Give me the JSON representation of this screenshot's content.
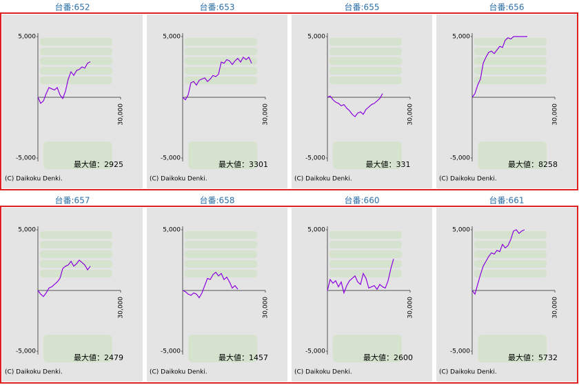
{
  "chart_data": [
    {
      "type": "line",
      "title": "台番:652",
      "max_label": "最大値：2925",
      "copyright": "(C) Daikoku Denki.",
      "color": "#8a00e0",
      "x": [
        0,
        1000,
        2000,
        3000,
        4000,
        5000,
        6000,
        7000,
        8000,
        9000,
        10000,
        11000,
        12000,
        13000,
        14000,
        15000,
        16000,
        17000,
        18000,
        19000
      ],
      "values": [
        0,
        -500,
        -300,
        300,
        800,
        700,
        600,
        800,
        200,
        -100,
        500,
        1500,
        2100,
        1800,
        2200,
        2300,
        2500,
        2400,
        2800,
        2925
      ],
      "xlim": [
        0,
        30000
      ],
      "ylim": [
        -5000,
        5000
      ],
      "xticks": [
        {
          "value": 30000,
          "label": "30,000"
        }
      ],
      "yticks": [
        {
          "value": 5000,
          "label": "5,000"
        },
        {
          "value": -5000,
          "label": "-5,000"
        }
      ]
    },
    {
      "type": "line",
      "title": "台番:653",
      "max_label": "最大値：3301",
      "copyright": "(C) Daikoku Denki.",
      "color": "#8a00e0",
      "x": [
        0,
        1000,
        2000,
        3000,
        4000,
        5000,
        6000,
        7000,
        8000,
        9000,
        10000,
        11000,
        12000,
        13000,
        14000,
        15000,
        16000,
        17000,
        18000,
        19000,
        20000,
        21000,
        22000,
        23000,
        24000,
        25000
      ],
      "values": [
        0,
        -200,
        200,
        1200,
        1300,
        1000,
        1400,
        1500,
        1600,
        1300,
        1500,
        1800,
        1700,
        1900,
        2900,
        2800,
        3100,
        3000,
        2700,
        3000,
        3200,
        2900,
        3300,
        3100,
        3300,
        2800
      ],
      "xlim": [
        0,
        30000
      ],
      "ylim": [
        -5000,
        5000
      ],
      "xticks": [
        {
          "value": 30000,
          "label": "30,000"
        }
      ],
      "yticks": [
        {
          "value": 5000,
          "label": "5,000"
        },
        {
          "value": -5000,
          "label": "-5,000"
        }
      ]
    },
    {
      "type": "line",
      "title": "台番:655",
      "max_label": "最大値：331",
      "copyright": "(C) Daikoku Denki.",
      "color": "#8a00e0",
      "x": [
        0,
        1000,
        2000,
        3000,
        4000,
        5000,
        6000,
        7000,
        8000,
        9000,
        10000,
        11000,
        12000,
        13000,
        14000,
        15000,
        16000,
        17000,
        18000,
        19000,
        20000
      ],
      "values": [
        0,
        100,
        -200,
        -400,
        -500,
        -700,
        -600,
        -900,
        -1100,
        -1400,
        -1600,
        -1300,
        -1200,
        -1400,
        -1000,
        -800,
        -600,
        -500,
        -300,
        -100,
        300
      ],
      "xlim": [
        0,
        30000
      ],
      "ylim": [
        -5000,
        5000
      ],
      "xticks": [
        {
          "value": 30000,
          "label": "30,000"
        }
      ],
      "yticks": [
        {
          "value": 5000,
          "label": "5,000"
        },
        {
          "value": -5000,
          "label": "-5,000"
        }
      ]
    },
    {
      "type": "line",
      "title": "台番:656",
      "max_label": "最大値：8258",
      "copyright": "(C) Daikoku Denki.",
      "color": "#8a00e0",
      "x": [
        0,
        1000,
        2000,
        3000,
        4000,
        5000,
        6000,
        7000,
        8000,
        9000,
        10000,
        11000,
        12000,
        13000,
        14000,
        15000,
        16000,
        17000,
        18000,
        19000,
        20000
      ],
      "values": [
        0,
        300,
        1000,
        1500,
        2800,
        3300,
        3700,
        3800,
        3600,
        3900,
        4200,
        4100,
        4700,
        4900,
        4800,
        5000,
        5000,
        5000,
        5000,
        5000,
        5000
      ],
      "xlim": [
        0,
        30000
      ],
      "ylim": [
        -5000,
        5000
      ],
      "xticks": [
        {
          "value": 30000,
          "label": "30,000"
        }
      ],
      "yticks": [
        {
          "value": 5000,
          "label": "5,000"
        },
        {
          "value": -5000,
          "label": "-5,000"
        }
      ]
    },
    {
      "type": "line",
      "title": "台番:657",
      "max_label": "最大値：2479",
      "copyright": "(C) Daikoku Denki.",
      "color": "#8a00e0",
      "x": [
        0,
        1000,
        2000,
        3000,
        4000,
        5000,
        6000,
        7000,
        8000,
        9000,
        10000,
        11000,
        12000,
        13000,
        14000,
        15000,
        16000,
        17000,
        18000,
        19000
      ],
      "values": [
        0,
        -300,
        -500,
        -200,
        200,
        300,
        500,
        700,
        1000,
        1800,
        2000,
        2100,
        2400,
        2000,
        2200,
        2500,
        2300,
        2100,
        1700,
        2000
      ],
      "xlim": [
        0,
        30000
      ],
      "ylim": [
        -5000,
        5000
      ],
      "xticks": [
        {
          "value": 30000,
          "label": "30,000"
        }
      ],
      "yticks": [
        {
          "value": 5000,
          "label": "5,000"
        },
        {
          "value": -5000,
          "label": "-5,000"
        }
      ]
    },
    {
      "type": "line",
      "title": "台番:658",
      "max_label": "最大値：1457",
      "copyright": "(C) Daikoku Denki.",
      "color": "#8a00e0",
      "x": [
        0,
        1000,
        2000,
        3000,
        4000,
        5000,
        6000,
        7000,
        8000,
        9000,
        10000,
        11000,
        12000,
        13000,
        14000,
        15000,
        16000,
        17000,
        18000,
        19000,
        20000
      ],
      "values": [
        0,
        -100,
        -300,
        -400,
        -200,
        -300,
        -600,
        -200,
        400,
        1000,
        900,
        1300,
        1500,
        1200,
        1400,
        900,
        1100,
        700,
        200,
        400,
        100
      ],
      "xlim": [
        0,
        30000
      ],
      "ylim": [
        -5000,
        5000
      ],
      "xticks": [
        {
          "value": 30000,
          "label": "30,000"
        }
      ],
      "yticks": [
        {
          "value": 5000,
          "label": "5,000"
        },
        {
          "value": -5000,
          "label": "-5,000"
        }
      ]
    },
    {
      "type": "line",
      "title": "台番:660",
      "max_label": "最大値：2600",
      "copyright": "(C) Daikoku Denki.",
      "color": "#8a00e0",
      "x": [
        0,
        1000,
        2000,
        3000,
        4000,
        5000,
        6000,
        7000,
        8000,
        9000,
        10000,
        11000,
        12000,
        13000,
        14000,
        15000,
        16000,
        17000,
        18000,
        19000,
        20000,
        21000,
        22000,
        23000,
        24000
      ],
      "values": [
        0,
        900,
        600,
        800,
        300,
        700,
        -200,
        400,
        800,
        1000,
        1200,
        700,
        500,
        1400,
        1000,
        200,
        300,
        400,
        100,
        500,
        300,
        200,
        800,
        1800,
        2600
      ],
      "xlim": [
        0,
        30000
      ],
      "ylim": [
        -5000,
        5000
      ],
      "xticks": [
        {
          "value": 30000,
          "label": "30,000"
        }
      ],
      "yticks": [
        {
          "value": 5000,
          "label": "5,000"
        },
        {
          "value": -5000,
          "label": "-5,000"
        }
      ]
    },
    {
      "type": "line",
      "title": "台番:661",
      "max_label": "最大値：5732",
      "copyright": "(C) Daikoku Denki.",
      "color": "#8a00e0",
      "x": [
        0,
        1000,
        2000,
        3000,
        4000,
        5000,
        6000,
        7000,
        8000,
        9000,
        10000,
        11000,
        12000,
        13000,
        14000,
        15000,
        16000,
        17000,
        18000,
        19000
      ],
      "values": [
        0,
        -300,
        500,
        1300,
        2000,
        2400,
        2800,
        3100,
        3000,
        3300,
        3200,
        3800,
        3500,
        3700,
        4200,
        4900,
        5000,
        4700,
        4900,
        5000
      ],
      "xlim": [
        0,
        30000
      ],
      "ylim": [
        -5000,
        5000
      ],
      "xticks": [
        {
          "value": 30000,
          "label": "30,000"
        }
      ],
      "yticks": [
        {
          "value": 5000,
          "label": "5,000"
        },
        {
          "value": -5000,
          "label": "-5,000"
        }
      ]
    }
  ]
}
